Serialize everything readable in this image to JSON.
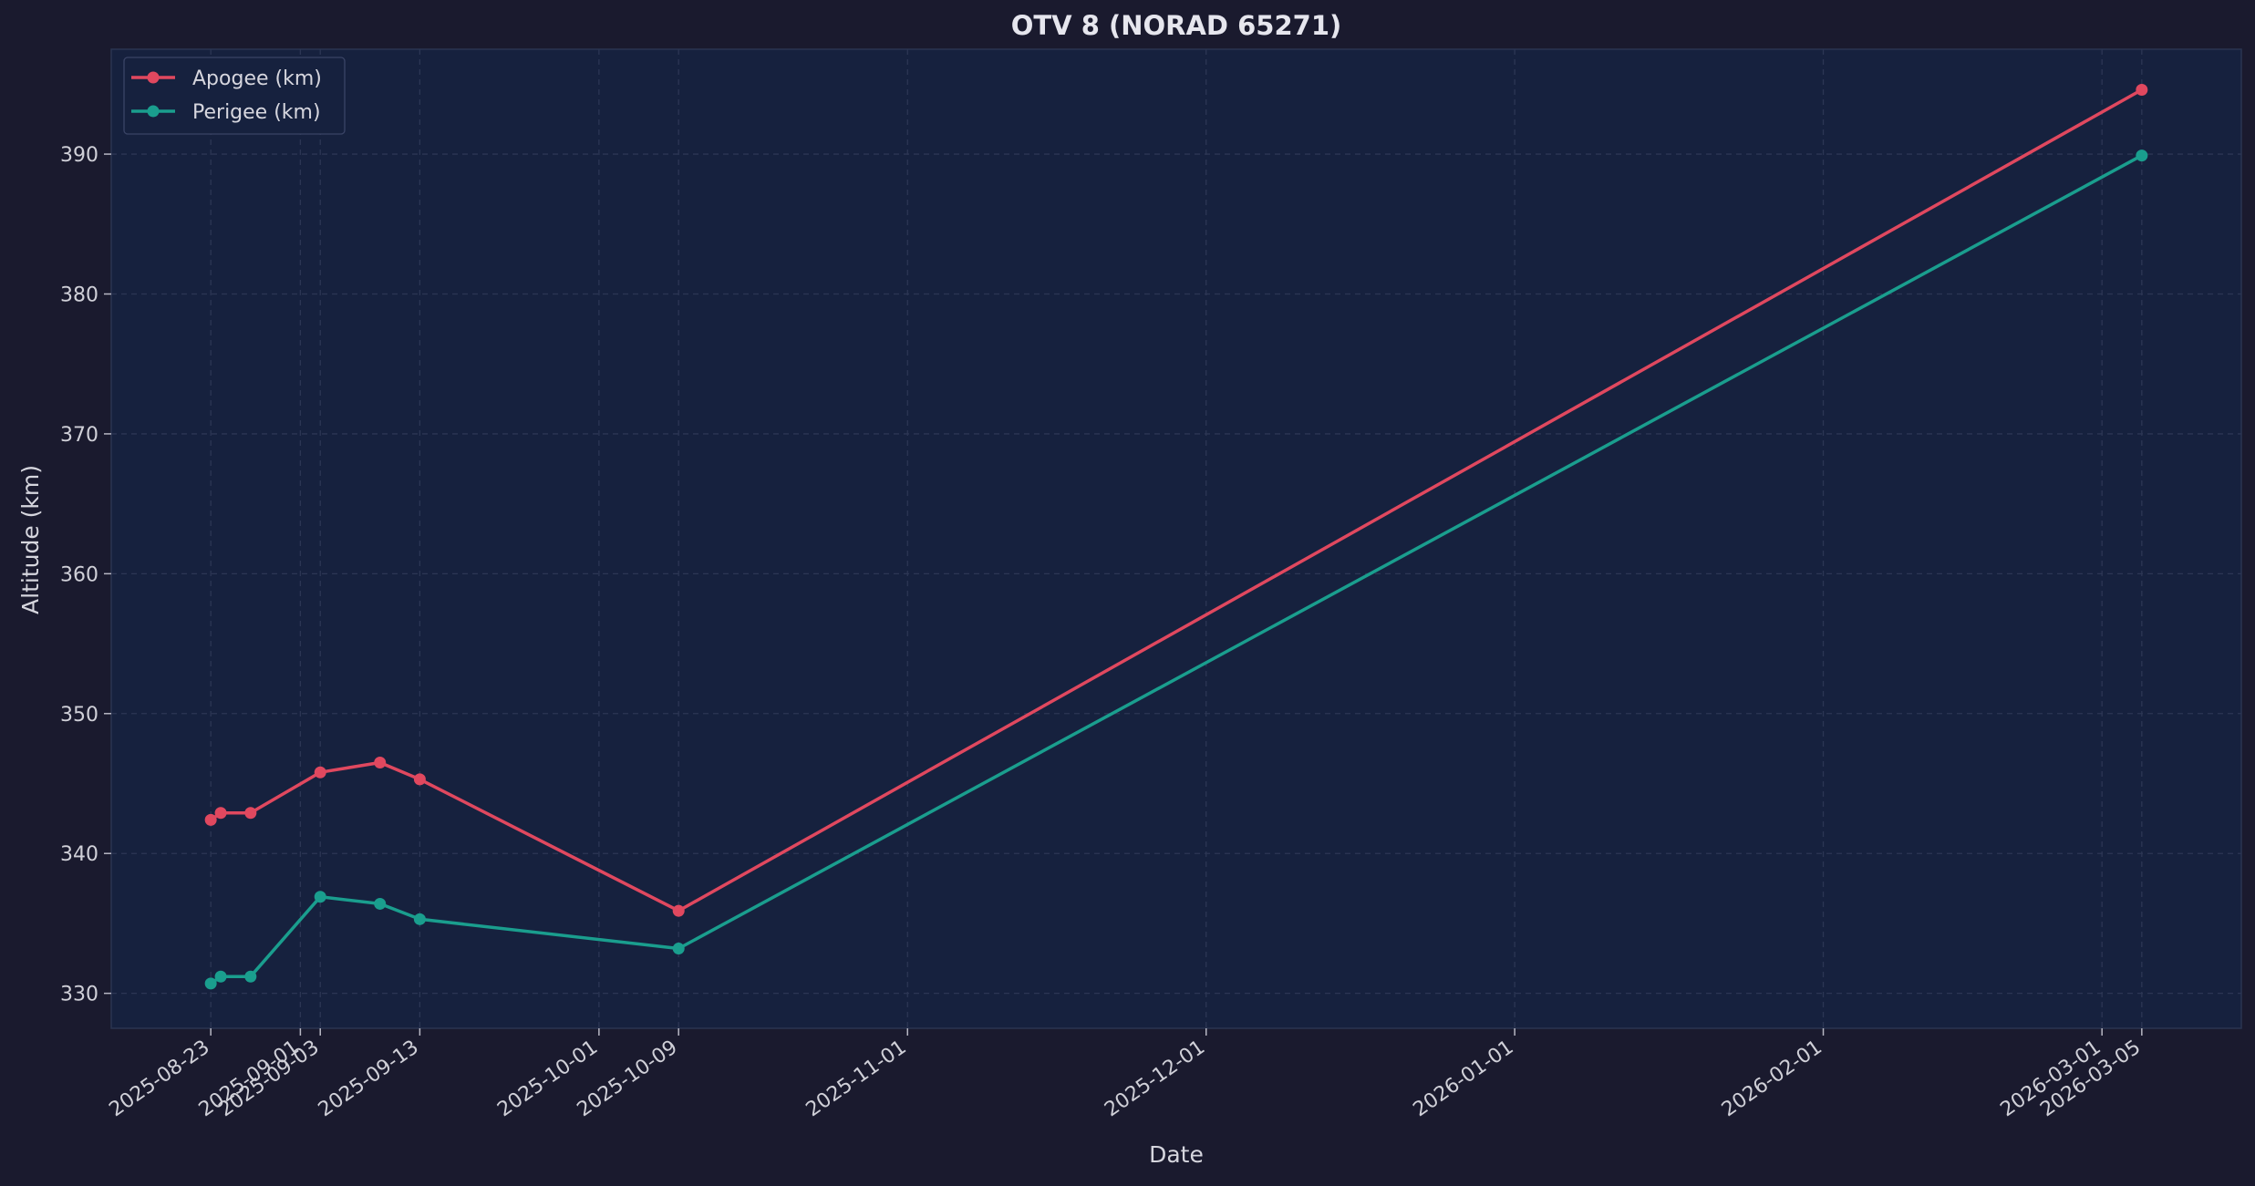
{
  "chart_data": {
    "type": "line",
    "title": "OTV 8 (NORAD 65271)",
    "xlabel": "Date",
    "ylabel": "Altitude (km)",
    "x_ticks": [
      "2025-08-23",
      "2025-09-01",
      "2025-09-03",
      "2025-09-13",
      "2025-10-01",
      "2025-10-09",
      "2025-11-01",
      "2025-12-01",
      "2026-01-01",
      "2026-02-01",
      "2026-03-01",
      "2026-03-05"
    ],
    "y_ticks": [
      330,
      340,
      350,
      360,
      370,
      380,
      390
    ],
    "xlim": [
      "2025-08-13",
      "2026-03-15"
    ],
    "ylim": [
      327.5,
      397.5
    ],
    "grid": true,
    "legend_position": "top-left",
    "series": [
      {
        "name": "Apogee (km)",
        "color": "#e0485f",
        "points": [
          [
            "2025-08-23",
            342.4
          ],
          [
            "2025-08-24",
            342.9
          ],
          [
            "2025-08-27",
            342.9
          ],
          [
            "2025-09-03",
            345.8
          ],
          [
            "2025-09-09",
            346.5
          ],
          [
            "2025-09-13",
            345.3
          ],
          [
            "2025-10-09",
            335.9
          ],
          [
            "2026-03-05",
            394.6
          ]
        ]
      },
      {
        "name": "Perigee (km)",
        "color": "#1a9e8e",
        "points": [
          [
            "2025-08-23",
            330.7
          ],
          [
            "2025-08-24",
            331.2
          ],
          [
            "2025-08-27",
            331.2
          ],
          [
            "2025-09-03",
            336.9
          ],
          [
            "2025-09-09",
            336.4
          ],
          [
            "2025-09-13",
            335.3
          ],
          [
            "2025-10-09",
            333.2
          ],
          [
            "2026-03-05",
            389.9
          ]
        ]
      }
    ]
  },
  "colors": {
    "background": "#1a1a2e",
    "plot_background": "#16213e",
    "grid": "#2c3654",
    "text": "#d6d6de"
  }
}
